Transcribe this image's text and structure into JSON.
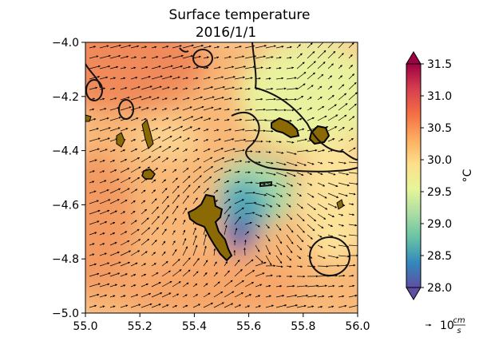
{
  "chart_data": {
    "type": "heatmap",
    "title_line1": "Surface temperature",
    "title_line2": "2016/1/1",
    "x": {
      "range": [
        55.0,
        56.0
      ],
      "ticks": [
        55.0,
        55.2,
        55.4,
        55.6,
        55.8,
        56.0
      ],
      "tick_labels": [
        "55.0",
        "55.2",
        "55.4",
        "55.6",
        "55.8",
        "56.0"
      ]
    },
    "y": {
      "range": [
        -5.0,
        -4.0
      ],
      "ticks": [
        -4.0,
        -4.2,
        -4.4,
        -4.6,
        -4.8,
        -5.0
      ],
      "tick_labels": [
        "−4.0",
        "−4.2",
        "−4.4",
        "−4.6",
        "−4.8",
        "−5.0"
      ]
    },
    "colorbar": {
      "range": [
        28.0,
        31.5
      ],
      "ticks": [
        28.0,
        28.5,
        29.0,
        29.5,
        30.0,
        30.5,
        31.0,
        31.5
      ],
      "tick_labels": [
        "28.0",
        "28.5",
        "29.0",
        "29.5",
        "30.0",
        "30.5",
        "31.0",
        "31.5"
      ],
      "label": "°C",
      "extend": "both",
      "colormap": [
        "#5e4fa2",
        "#3288bd",
        "#66c2a5",
        "#abdda4",
        "#e6f598",
        "#fee08b",
        "#fdae61",
        "#f46d43",
        "#d53e4f",
        "#9e0142"
      ]
    },
    "quiver_key": {
      "label_main": "10",
      "label_sup": "cm",
      "label_sub": "s"
    },
    "colors": {
      "land": "#8b6a05",
      "contour": "#111111"
    }
  }
}
